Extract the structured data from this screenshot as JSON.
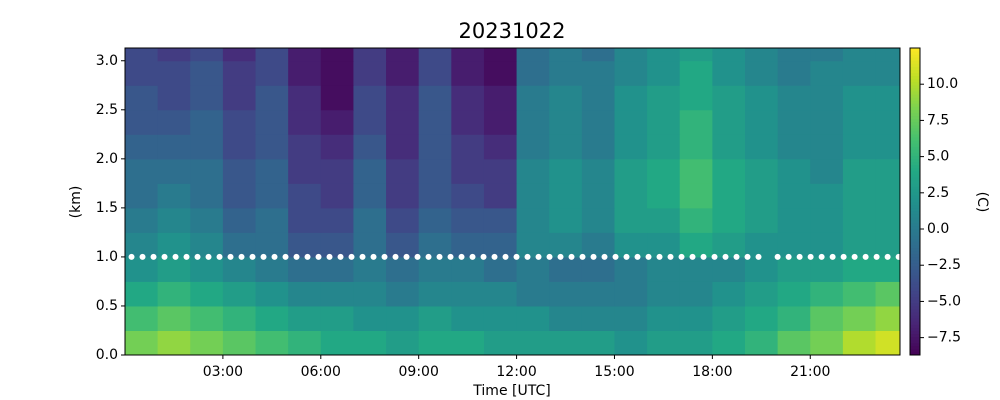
{
  "chart_data": {
    "type": "heatmap",
    "title": "20231022",
    "x_label": "Time [UTC]",
    "y_label": "(km)",
    "colorbar_label": "(C)",
    "colormap": "viridis",
    "xlim": [
      0,
      23.75
    ],
    "ylim": [
      0,
      3.13
    ],
    "clim": [
      -8.7,
      12.5
    ],
    "xticks": [
      {
        "value": 3,
        "label": "03:00"
      },
      {
        "value": 6,
        "label": "06:00"
      },
      {
        "value": 9,
        "label": "09:00"
      },
      {
        "value": 12,
        "label": "12:00"
      },
      {
        "value": 15,
        "label": "15:00"
      },
      {
        "value": 18,
        "label": "18:00"
      },
      {
        "value": 21,
        "label": "21:00"
      }
    ],
    "yticks": [
      0.0,
      0.5,
      1.0,
      1.5,
      2.0,
      2.5,
      3.0
    ],
    "cticks": [
      -7.5,
      -5.0,
      -2.5,
      0.0,
      2.5,
      5.0,
      7.5,
      10.0
    ],
    "x_edges": [
      0,
      1,
      2,
      3,
      4,
      5,
      6,
      7,
      8,
      9,
      10,
      11,
      12,
      13,
      14,
      15,
      16,
      17,
      18,
      19,
      20,
      21,
      22,
      23,
      24
    ],
    "y_edges": [
      0,
      0.25,
      0.5,
      0.75,
      1.0,
      1.25,
      1.5,
      1.75,
      2.0,
      2.25,
      2.5,
      2.75,
      3.0,
      3.25
    ],
    "z": [
      [
        8,
        9,
        8,
        7,
        6,
        5,
        4,
        4,
        3,
        4,
        4,
        3,
        3,
        3,
        3,
        2,
        3,
        3,
        4,
        5,
        7,
        8,
        10,
        11
      ],
      [
        6,
        7,
        6,
        5,
        4,
        3,
        3,
        2,
        2,
        3,
        2,
        2,
        2,
        1,
        1,
        1,
        2,
        2,
        3,
        4,
        5,
        7,
        8,
        9
      ],
      [
        4,
        5,
        4,
        3,
        2,
        1,
        1,
        1,
        0,
        1,
        1,
        1,
        0,
        0,
        0,
        0,
        1,
        1,
        2,
        3,
        4,
        5,
        6,
        7
      ],
      [
        2,
        3,
        2,
        1,
        0,
        -1,
        -1,
        0,
        -1,
        0,
        0,
        -1,
        0,
        -1,
        -1,
        0,
        1,
        1,
        1,
        2,
        3,
        3,
        4,
        4
      ],
      [
        1,
        2,
        1,
        -1,
        -1,
        -3,
        -3,
        -1,
        -3,
        -1,
        -2,
        -2,
        1,
        1,
        0,
        2,
        2,
        4,
        3,
        2,
        2,
        2,
        3,
        3
      ],
      [
        0,
        1,
        0,
        -2,
        -1,
        -4,
        -4,
        -1,
        -4,
        -2,
        -3,
        -3,
        1,
        2,
        1,
        3,
        3,
        5,
        4,
        3,
        2,
        2,
        3,
        3
      ],
      [
        -1,
        0,
        -1,
        -3,
        -2,
        -4,
        -5,
        -2,
        -5,
        -3,
        -4,
        -5,
        1,
        2,
        1,
        3,
        4,
        6,
        4,
        3,
        2,
        2,
        3,
        3
      ],
      [
        -1,
        -1,
        -1,
        -3,
        -2,
        -5,
        -5,
        -2,
        -5,
        -3,
        -5,
        -5,
        1,
        2,
        1,
        3,
        4,
        6,
        4,
        3,
        2,
        1,
        3,
        3
      ],
      [
        -2,
        -2,
        -2,
        -4,
        -3,
        -5,
        -6,
        -3,
        -6,
        -3,
        -5,
        -6,
        0,
        1,
        0,
        2,
        3,
        5,
        3,
        2,
        1,
        1,
        2,
        2
      ],
      [
        -3,
        -3,
        -2,
        -4,
        -3,
        -6,
        -7,
        -4,
        -6,
        -3,
        -6,
        -7,
        0,
        1,
        0,
        2,
        3,
        5,
        3,
        2,
        1,
        1,
        2,
        2
      ],
      [
        -3,
        -4,
        -3,
        -5,
        -3,
        -6,
        -8,
        -4,
        -6,
        -3,
        -6,
        -7,
        0,
        1,
        0,
        2,
        3,
        4,
        3,
        2,
        1,
        1,
        2,
        2
      ],
      [
        -4,
        -4,
        -3,
        -5,
        -4,
        -7,
        -8,
        -5,
        -7,
        -4,
        -7,
        -8,
        -1,
        0,
        0,
        1,
        2,
        4,
        2,
        1,
        0,
        1,
        1,
        1
      ],
      [
        -4,
        -5,
        -4,
        -6,
        -4,
        -7,
        -8,
        -5,
        -7,
        -4,
        -7,
        -8,
        -1,
        0,
        -1,
        1,
        2,
        3,
        2,
        1,
        0,
        0,
        1,
        1
      ]
    ],
    "overlay": {
      "y": 1.0,
      "color": "#ffffff",
      "segments": [
        [
          0.2,
          19.5
        ],
        [
          20.0,
          23.75
        ]
      ]
    }
  }
}
